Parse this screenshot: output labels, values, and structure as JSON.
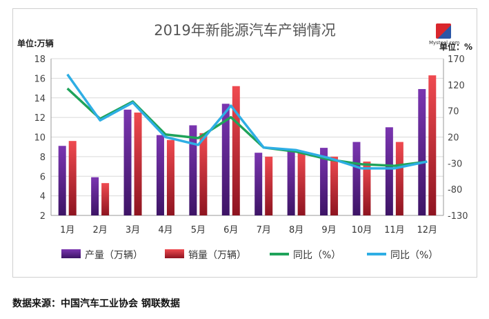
{
  "chart_data": {
    "type": "bar",
    "title": "2019年新能源汽车产销情况",
    "ylabel_left": "单位:万辆",
    "ylabel_right": "单位：%",
    "categories": [
      "1月",
      "2月",
      "3月",
      "4月",
      "5月",
      "6月",
      "7月",
      "8月",
      "9月",
      "10月",
      "11月",
      "12月"
    ],
    "ylim_left": [
      2,
      18
    ],
    "ylim_right": [
      -130,
      170
    ],
    "yticks_left": [
      "2",
      "4",
      "6",
      "8",
      "10",
      "12",
      "14",
      "16",
      "18"
    ],
    "yticks_right": [
      "-130",
      "-80",
      "-30",
      "20",
      "70",
      "120",
      "170"
    ],
    "series": [
      {
        "name": "产量（万辆）",
        "type": "bar",
        "axis": "left",
        "color": "#6a2d9c",
        "values": [
          9.1,
          5.9,
          12.8,
          10.2,
          11.2,
          13.4,
          8.4,
          8.7,
          8.9,
          9.5,
          11.0,
          14.9
        ]
      },
      {
        "name": "销量（万辆）",
        "type": "bar",
        "axis": "left",
        "color": "#e0404a",
        "values": [
          9.6,
          5.3,
          12.5,
          9.7,
          10.4,
          15.2,
          8.0,
          8.5,
          8.0,
          7.5,
          9.5,
          16.3
        ]
      },
      {
        "name": "同比（%）",
        "type": "line",
        "axis": "right",
        "color": "#1fa35a",
        "values": [
          113,
          55,
          88,
          25,
          18,
          58,
          0,
          -8,
          -23,
          -32,
          -35,
          -27
        ]
      },
      {
        "name": "同比（%）",
        "type": "line",
        "axis": "right",
        "color": "#2eaee4",
        "values": [
          140,
          52,
          86,
          20,
          5,
          80,
          0,
          -5,
          -20,
          -40,
          -40,
          -27
        ]
      }
    ]
  },
  "logo": {
    "site": "Mysteel.com"
  },
  "source": "数据来源：中国汽车工业协会 钢联数据"
}
